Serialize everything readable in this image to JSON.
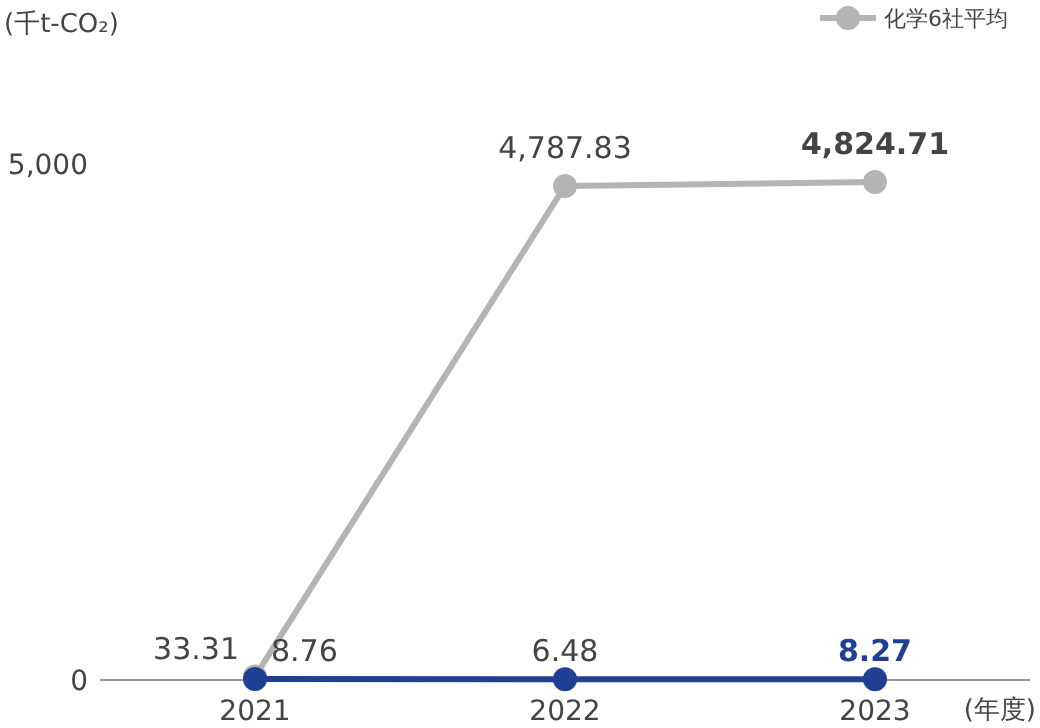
{
  "chart_data": {
    "type": "line",
    "ylabel": "(千t-CO₂)",
    "xlabel": "(年度)",
    "categories": [
      "2021",
      "2022",
      "2023"
    ],
    "series": [
      {
        "name": "化学6社平均",
        "color": "#b4b4b4",
        "values": [
          33.31,
          4787.83,
          4824.71
        ],
        "value_labels": [
          "33.31",
          "4,787.83",
          "4,824.71"
        ]
      },
      {
        "color": "#1e3f92",
        "values": [
          8.76,
          6.48,
          8.27
        ],
        "value_labels": [
          "8.76",
          "6.48",
          "8.27"
        ]
      }
    ],
    "ylim": [
      0,
      5000
    ],
    "yticks": [
      0,
      {
        "value": 5000,
        "label": "5,000"
      }
    ],
    "grid": false,
    "legend": "top right",
    "marker": "circle",
    "line_style": "solid"
  }
}
